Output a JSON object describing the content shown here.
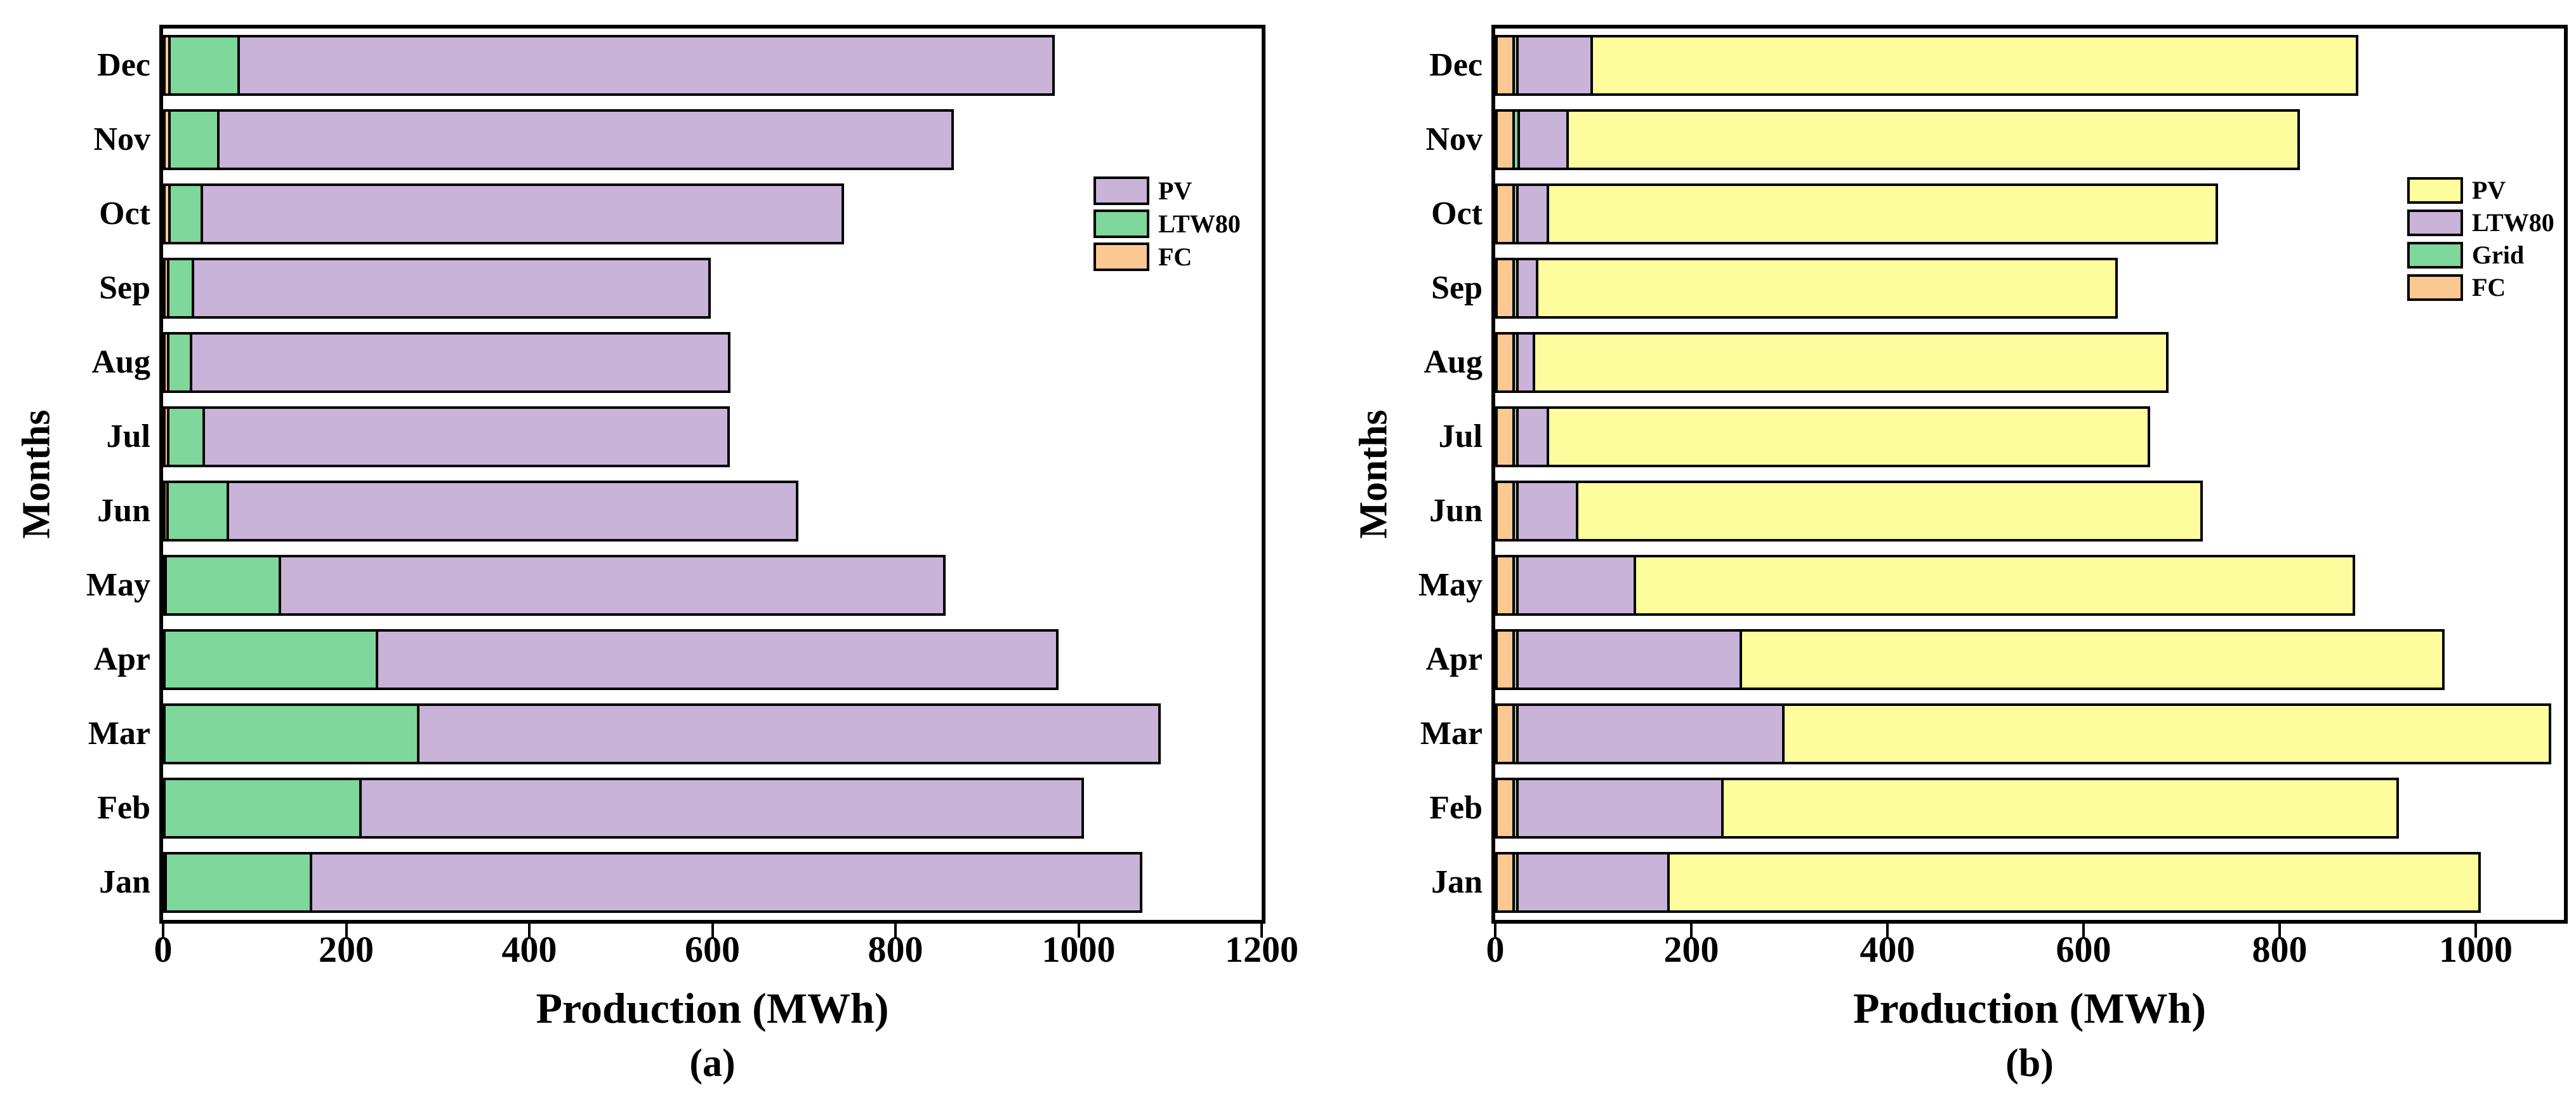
{
  "chart_data": [
    {
      "type": "bar",
      "orientation": "horizontal",
      "stacked": true,
      "caption": "(a)",
      "xlabel": "Production (MWh)",
      "ylabel": "Months",
      "xlim": [
        0,
        1200
      ],
      "xticks": [
        0,
        200,
        400,
        600,
        800,
        1000,
        1200
      ],
      "grid": false,
      "legend_position": "inside-right",
      "categories": [
        "Jan",
        "Feb",
        "Mar",
        "Apr",
        "May",
        "Jun",
        "Jul",
        "Aug",
        "Sep",
        "Oct",
        "Nov",
        "Dec"
      ],
      "series": [
        {
          "name": "FC",
          "color": "#FBC891",
          "values": [
            4,
            3,
            3,
            3,
            4,
            6,
            7,
            7,
            7,
            8,
            8,
            8
          ]
        },
        {
          "name": "LTW80",
          "color": "#7ED79B",
          "values": [
            159,
            214,
            277,
            232,
            125,
            66,
            39,
            25,
            27,
            36,
            54,
            76
          ]
        },
        {
          "name": "PV",
          "color": "#C9B3D8",
          "values": [
            907,
            789,
            810,
            743,
            726,
            622,
            573,
            588,
            564,
            700,
            802,
            890
          ]
        }
      ],
      "legend": [
        {
          "label": "PV",
          "color": "#C9B3D8"
        },
        {
          "label": "LTW80",
          "color": "#7ED79B"
        },
        {
          "label": "FC",
          "color": "#FBC891"
        }
      ]
    },
    {
      "type": "bar",
      "orientation": "horizontal",
      "stacked": true,
      "caption": "(b)",
      "xlabel": "Production (MWh)",
      "ylabel": "Months",
      "xlim": [
        0,
        1090
      ],
      "xticks": [
        0,
        200,
        400,
        600,
        800,
        1000
      ],
      "grid": false,
      "legend_position": "inside-right",
      "categories": [
        "Jan",
        "Feb",
        "Mar",
        "Apr",
        "May",
        "Jun",
        "Jul",
        "Aug",
        "Sep",
        "Oct",
        "Nov",
        "Dec"
      ],
      "series": [
        {
          "name": "FC",
          "color": "#FBC891",
          "values": [
            20,
            20,
            20,
            20,
            20,
            20,
            20,
            20,
            20,
            20,
            20,
            20
          ]
        },
        {
          "name": "Grid",
          "color": "#7ED79B",
          "values": [
            4,
            4,
            4,
            4,
            4,
            4,
            4,
            4,
            4,
            4,
            5,
            4
          ]
        },
        {
          "name": "LTW80",
          "color": "#C9B3D8",
          "values": [
            154,
            209,
            271,
            228,
            120,
            61,
            31,
            17,
            20,
            31,
            50,
            76
          ]
        },
        {
          "name": "PV",
          "color": "#FEFD9E",
          "values": [
            827,
            689,
            782,
            716,
            733,
            637,
            613,
            646,
            591,
            682,
            746,
            780
          ]
        }
      ],
      "legend": [
        {
          "label": "PV",
          "color": "#FEFD9E"
        },
        {
          "label": "LTW80",
          "color": "#C9B3D8"
        },
        {
          "label": "Grid",
          "color": "#7ED79B"
        },
        {
          "label": "FC",
          "color": "#FBC891"
        }
      ]
    }
  ]
}
